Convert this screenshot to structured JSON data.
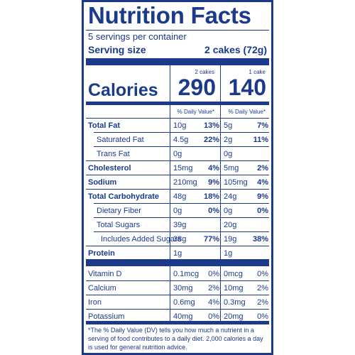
{
  "label": {
    "title": "Nutrition Facts",
    "servings_per_container": "5 servings per container",
    "serving_size_label": "Serving size",
    "serving_size_value": "2 cakes (72g)",
    "calories_label": "Calories",
    "columns": [
      {
        "header": "2 cakes",
        "calories": "290",
        "dv_header": "% Daily Value*"
      },
      {
        "header": "1 cake",
        "calories": "140",
        "dv_header": "% Daily Value*"
      }
    ],
    "nutrients": [
      {
        "name": "Total Fat",
        "bold": true,
        "indent": 0,
        "c1_amount": "10g",
        "c1_pct": "13%",
        "c2_amount": "5g",
        "c2_pct": "7%"
      },
      {
        "name": "Saturated Fat",
        "bold": false,
        "indent": 1,
        "c1_amount": "4.5g",
        "c1_pct": "22%",
        "c2_amount": "2g",
        "c2_pct": "11%"
      },
      {
        "name": "Trans Fat",
        "bold": false,
        "indent": 1,
        "c1_amount": "0g",
        "c1_pct": "",
        "c2_amount": "0g",
        "c2_pct": ""
      },
      {
        "name": "Cholesterol",
        "bold": true,
        "indent": 0,
        "c1_amount": "15mg",
        "c1_pct": "4%",
        "c2_amount": "5mg",
        "c2_pct": "2%"
      },
      {
        "name": "Sodium",
        "bold": true,
        "indent": 0,
        "c1_amount": "210mg",
        "c1_pct": "9%",
        "c2_amount": "105mg",
        "c2_pct": "4%"
      },
      {
        "name": "Total Carbohydrate",
        "bold": true,
        "indent": 0,
        "c1_amount": "48g",
        "c1_pct": "18%",
        "c2_amount": "24g",
        "c2_pct": "9%"
      },
      {
        "name": "Dietary Fiber",
        "bold": false,
        "indent": 1,
        "c1_amount": "0g",
        "c1_pct": "0%",
        "c2_amount": "0g",
        "c2_pct": "0%"
      },
      {
        "name": "Total Sugars",
        "bold": false,
        "indent": 1,
        "c1_amount": "39g",
        "c1_pct": "",
        "c2_amount": "20g",
        "c2_pct": ""
      },
      {
        "name": "Includes Added Sugars",
        "bold": false,
        "indent": 2,
        "c1_amount": "38g",
        "c1_pct": "77%",
        "c2_amount": "19g",
        "c2_pct": "38%"
      },
      {
        "name": "Protein",
        "bold": true,
        "indent": 0,
        "c1_amount": "1g",
        "c1_pct": "",
        "c2_amount": "1g",
        "c2_pct": ""
      }
    ],
    "vitamins": [
      {
        "name": "Vitamin D",
        "c1_amount": "0.1mcg",
        "c1_pct": "0%",
        "c2_amount": "0mcg",
        "c2_pct": "0%"
      },
      {
        "name": "Calcium",
        "c1_amount": "30mg",
        "c1_pct": "2%",
        "c2_amount": "10mg",
        "c2_pct": "2%"
      },
      {
        "name": "Iron",
        "c1_amount": "0.6mg",
        "c1_pct": "4%",
        "c2_amount": "0.3mg",
        "c2_pct": "2%"
      },
      {
        "name": "Potassium",
        "c1_amount": "40mg",
        "c1_pct": "0%",
        "c2_amount": "20mg",
        "c2_pct": "0%"
      }
    ],
    "footnote": "*The % Daily Value (DV) tells you how much a nutrient in a serving of food contributes to a daily diet. 2,000 calories a day is used for general nutrition advice.",
    "colors": {
      "ink": "#1b3a8c",
      "background": "#ffffff"
    }
  }
}
